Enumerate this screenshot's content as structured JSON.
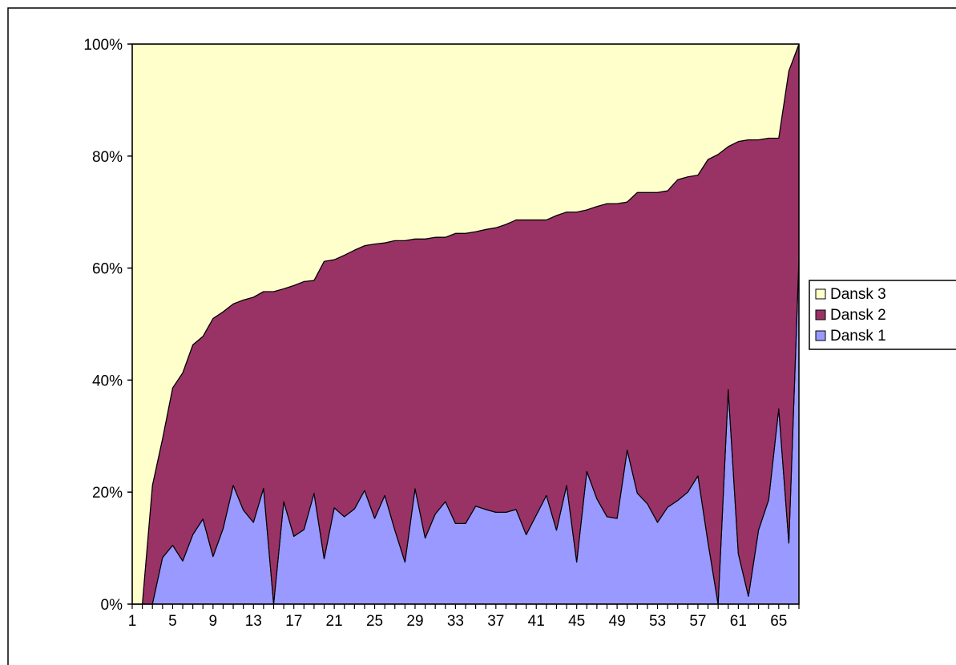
{
  "chart_data": {
    "type": "stacked_area_percent",
    "categories": [
      1,
      null,
      null,
      null,
      5,
      null,
      null,
      null,
      9,
      null,
      null,
      null,
      13,
      null,
      null,
      null,
      17,
      null,
      null,
      null,
      21,
      null,
      null,
      null,
      25,
      null,
      null,
      null,
      29,
      null,
      null,
      null,
      33,
      null,
      null,
      null,
      37,
      null,
      null,
      null,
      41,
      null,
      null,
      null,
      45,
      null,
      null,
      null,
      49,
      null,
      null,
      null,
      53,
      null,
      null,
      null,
      57,
      null,
      null,
      null,
      61,
      null,
      null,
      null,
      65,
      null,
      null
    ],
    "series": [
      {
        "name": "Dansk 1",
        "color": "#9999ff",
        "values": [
          0,
          0,
          0,
          8.3,
          10.5,
          7.7,
          12.4,
          15.2,
          8.5,
          13.5,
          21.2,
          16.8,
          14.6,
          20.7,
          0,
          18.3,
          12.1,
          13.3,
          19.8,
          8.1,
          17.2,
          15.6,
          17,
          20.3,
          15.3,
          19.4,
          13.2,
          7.5,
          20.6,
          11.8,
          16.1,
          18.3,
          14.4,
          14.4,
          17.5,
          16.9,
          16.4,
          16.4,
          16.9,
          12.4,
          15.9,
          19.4,
          13.2,
          21.2,
          7.5,
          23.7,
          18.8,
          15.6,
          15.3,
          27.5,
          19.8,
          17.9,
          14.6,
          17.3,
          18.5,
          20,
          22.9,
          11,
          0,
          38.3,
          9,
          1.4,
          13.2,
          18.6,
          34.9,
          10.9,
          61.7
        ]
      },
      {
        "name": "Dansk 2",
        "color": "#993366",
        "values": [
          0,
          0,
          21.2,
          21.2,
          28.1,
          33.6,
          33.9,
          32.6,
          42.5,
          38.7,
          32.4,
          37.5,
          40.2,
          35.1,
          55.8,
          38,
          44.8,
          44.3,
          38,
          53.1,
          44.3,
          46.7,
          46.2,
          43.7,
          49,
          45.1,
          51.7,
          57.4,
          44.6,
          53.4,
          49.4,
          47.2,
          51.8,
          51.8,
          49,
          50,
          50.8,
          51.4,
          51.7,
          56.2,
          52.7,
          49.2,
          56.2,
          48.8,
          62.5,
          46.7,
          52.2,
          55.9,
          56.2,
          44.3,
          53.7,
          55.6,
          58.9,
          56.5,
          57.3,
          56.3,
          53.7,
          68.4,
          80.3,
          43.4,
          73.6,
          81.5,
          69.7,
          64.6,
          48.3,
          84.3,
          38.3
        ]
      },
      {
        "name": "Dansk 3",
        "color": "#ffffcc",
        "values": [
          100,
          100,
          78.8,
          70.5,
          61.4,
          58.7,
          53.7,
          52.2,
          49,
          47.8,
          46.4,
          45.7,
          45.2,
          44.2,
          44.2,
          43.7,
          43.1,
          42.4,
          42.2,
          38.8,
          38.5,
          37.7,
          36.8,
          36,
          35.7,
          35.5,
          35.1,
          35.1,
          34.8,
          34.8,
          34.5,
          34.5,
          33.8,
          33.8,
          33.5,
          33.1,
          32.8,
          32.2,
          31.4,
          31.4,
          31.4,
          31.4,
          30.6,
          30,
          30,
          29.6,
          29,
          28.5,
          28.5,
          28.2,
          26.5,
          26.5,
          26.5,
          26.2,
          24.2,
          23.7,
          23.4,
          20.6,
          19.7,
          18.3,
          17.4,
          17.1,
          17.1,
          16.8,
          16.8,
          4.8,
          0
        ]
      }
    ],
    "ylim": [
      0,
      100
    ],
    "yticks": [
      {
        "value": 0,
        "label": "0%"
      },
      {
        "value": 20,
        "label": "20%"
      },
      {
        "value": 40,
        "label": "40%"
      },
      {
        "value": 60,
        "label": "60%"
      },
      {
        "value": 80,
        "label": "80%"
      },
      {
        "value": 100,
        "label": "100%"
      }
    ],
    "legend": "right"
  }
}
